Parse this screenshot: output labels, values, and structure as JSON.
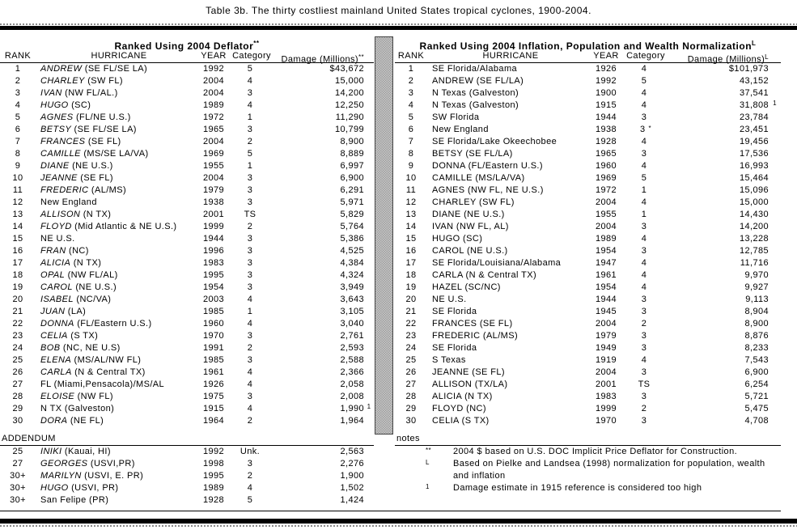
{
  "title": "Table 3b.  The thirty costliest mainland United States tropical cyclones, 1900-2004.",
  "left_table": {
    "section_header": "Ranked Using 2004 Deflator",
    "section_header_sup": "**",
    "columns": {
      "rank": "RANK",
      "hurricane": "HURRICANE",
      "year": "YEAR",
      "category": "Category",
      "damage": "Damage (Millions)",
      "damage_sup": "**"
    },
    "rows": [
      {
        "rank": "1",
        "name": "ANDREW",
        "loc": " (SE FL/SE LA)",
        "year": "1992",
        "cat": "5",
        "dmg": "$43,672",
        "sup": ""
      },
      {
        "rank": "2",
        "name": "CHARLEY",
        "loc": " (SW FL)",
        "year": "2004",
        "cat": "4",
        "dmg": "15,000",
        "sup": ""
      },
      {
        "rank": "3",
        "name": "IVAN",
        "loc": " (NW FL/AL.)",
        "year": "2004",
        "cat": "3",
        "dmg": "14,200",
        "sup": ""
      },
      {
        "rank": "4",
        "name": "HUGO",
        "loc": " (SC)",
        "year": "1989",
        "cat": "4",
        "dmg": "12,250",
        "sup": ""
      },
      {
        "rank": "5",
        "name": "AGNES",
        "loc": " (FL/NE U.S.)",
        "year": "1972",
        "cat": "1",
        "dmg": "11,290",
        "sup": ""
      },
      {
        "rank": "6",
        "name": "BETSY",
        "loc": " (SE FL/SE LA)",
        "year": "1965",
        "cat": "3",
        "dmg": "10,799",
        "sup": ""
      },
      {
        "rank": "7",
        "name": "FRANCES",
        "loc": " (SE FL)",
        "year": "2004",
        "cat": "2",
        "dmg": "8,900",
        "sup": ""
      },
      {
        "rank": "8",
        "name": "CAMILLE",
        "loc": " (MS/SE LA/VA)",
        "year": "1969",
        "cat": "5",
        "dmg": "8,889",
        "sup": ""
      },
      {
        "rank": "9",
        "name": "DIANE",
        "loc": " (NE U.S.)",
        "year": "1955",
        "cat": "1",
        "dmg": "6,997",
        "sup": ""
      },
      {
        "rank": "10",
        "name": "JEANNE",
        "loc": " (SE FL)",
        "year": "2004",
        "cat": "3",
        "dmg": "6,900",
        "sup": ""
      },
      {
        "rank": "11",
        "name": "FREDERIC",
        "loc": " (AL/MS)",
        "year": "1979",
        "cat": "3",
        "dmg": "6,291",
        "sup": ""
      },
      {
        "rank": "12",
        "name": "",
        "loc": "New England",
        "year": "1938",
        "cat": "3",
        "dmg": "5,971",
        "sup": ""
      },
      {
        "rank": "13",
        "name": "ALLISON",
        "loc": " (N TX)",
        "year": "2001",
        "cat": "TS",
        "dmg": "5,829",
        "sup": ""
      },
      {
        "rank": "14",
        "name": "FLOYD",
        "loc": " (Mid Atlantic & NE U.S.)",
        "year": "1999",
        "cat": "2",
        "dmg": "5,764",
        "sup": ""
      },
      {
        "rank": "15",
        "name": "",
        "loc": "NE U.S.",
        "year": "1944",
        "cat": "3",
        "dmg": "5,386",
        "sup": ""
      },
      {
        "rank": "16",
        "name": "FRAN",
        "loc": " (NC)",
        "year": "1996",
        "cat": "3",
        "dmg": "4,525",
        "sup": ""
      },
      {
        "rank": "17",
        "name": "ALICIA",
        "loc": " (N TX)",
        "year": "1983",
        "cat": "3",
        "dmg": "4,384",
        "sup": ""
      },
      {
        "rank": "18",
        "name": "OPAL",
        "loc": " (NW FL/AL)",
        "year": "1995",
        "cat": "3",
        "dmg": "4,324",
        "sup": ""
      },
      {
        "rank": "19",
        "name": "CAROL",
        "loc": " (NE U.S.)",
        "year": "1954",
        "cat": "3",
        "dmg": "3,949",
        "sup": ""
      },
      {
        "rank": "20",
        "name": "ISABEL",
        "loc": " (NC/VA)",
        "year": "2003",
        "cat": "4",
        "dmg": "3,643",
        "sup": ""
      },
      {
        "rank": "21",
        "name": "JUAN",
        "loc": " (LA)",
        "year": "1985",
        "cat": "1",
        "dmg": "3,105",
        "sup": ""
      },
      {
        "rank": "22",
        "name": "DONNA",
        "loc": " (FL/Eastern U.S.)",
        "year": "1960",
        "cat": "4",
        "dmg": "3,040",
        "sup": ""
      },
      {
        "rank": "23",
        "name": "CELIA",
        "loc": " (S TX)",
        "year": "1970",
        "cat": "3",
        "dmg": "2,761",
        "sup": ""
      },
      {
        "rank": "24",
        "name": "BOB",
        "loc": " (NC, NE U.S)",
        "year": "1991",
        "cat": "2",
        "dmg": "2,593",
        "sup": ""
      },
      {
        "rank": "25",
        "name": "ELENA",
        "loc": " (MS/AL/NW FL)",
        "year": "1985",
        "cat": "3",
        "dmg": "2,588",
        "sup": ""
      },
      {
        "rank": "26",
        "name": "CARLA",
        "loc": " (N & Central TX)",
        "year": "1961",
        "cat": "4",
        "dmg": "2,366",
        "sup": ""
      },
      {
        "rank": "27",
        "name": "",
        "loc": "FL (Miami,Pensacola)/MS/AL",
        "year": "1926",
        "cat": "4",
        "dmg": "2,058",
        "sup": ""
      },
      {
        "rank": "28",
        "name": "ELOISE",
        "loc": " (NW FL)",
        "year": "1975",
        "cat": "3",
        "dmg": "2,008",
        "sup": ""
      },
      {
        "rank": "29",
        "name": "",
        "loc": "N TX (Galveston)",
        "year": "1915",
        "cat": "4",
        "dmg": "1,990",
        "sup": "1"
      },
      {
        "rank": "30",
        "name": "DORA",
        "loc": " (NE FL)",
        "year": "1964",
        "cat": "2",
        "dmg": "1,964",
        "sup": ""
      }
    ],
    "addendum_label": "ADDENDUM",
    "addendum_rows": [
      {
        "rank": "25",
        "name": "INIKI",
        "loc": " (Kauai, HI)",
        "year": "1992",
        "cat": "Unk.",
        "dmg": "2,563",
        "sup": ""
      },
      {
        "rank": "27",
        "name": "GEORGES",
        "loc": " (USVI,PR)",
        "year": "1998",
        "cat": "3",
        "dmg": "2,276",
        "sup": ""
      },
      {
        "rank": "30+",
        "name": "MARILYN",
        "loc": " (USVI, E. PR)",
        "year": "1995",
        "cat": "2",
        "dmg": "1,900",
        "sup": ""
      },
      {
        "rank": "30+",
        "name": "HUGO",
        "loc": " (USVI, PR)",
        "year": "1989",
        "cat": "4",
        "dmg": "1,502",
        "sup": ""
      },
      {
        "rank": "30+",
        "name": "",
        "loc": "San Felipe (PR)",
        "year": "1928",
        "cat": "5",
        "dmg": "1,424",
        "sup": ""
      }
    ]
  },
  "right_table": {
    "section_header": "Ranked Using 2004 Inflation, Population and Wealth Normalization",
    "section_header_sup": "L",
    "columns": {
      "rank": "RANK",
      "hurricane": "HURRICANE",
      "year": "YEAR",
      "category": "Category",
      "damage": "Damage (Millions)",
      "damage_sup": "L"
    },
    "rows": [
      {
        "rank": "1",
        "name": "",
        "loc": "SE Florida/Alabama",
        "year": "1926",
        "cat": "4",
        "dmg": "$101,973",
        "sup": ""
      },
      {
        "rank": "2",
        "name": "",
        "loc": "ANDREW (SE FL/LA)",
        "year": "1992",
        "cat": "5",
        "dmg": "43,152",
        "sup": ""
      },
      {
        "rank": "3",
        "name": "",
        "loc": "N Texas (Galveston)",
        "year": "1900",
        "cat": "4",
        "dmg": "37,541",
        "sup": ""
      },
      {
        "rank": "4",
        "name": "",
        "loc": "N Texas (Galveston)",
        "year": "1915",
        "cat": "4",
        "dmg": "31,808",
        "sup": "1"
      },
      {
        "rank": "5",
        "name": "",
        "loc": "SW Florida",
        "year": "1944",
        "cat": "3",
        "dmg": "23,784",
        "sup": ""
      },
      {
        "rank": "6",
        "name": "",
        "loc": "New England",
        "year": "1938",
        "cat": "3",
        "cat_note": "*",
        "dmg": "23,451",
        "sup": ""
      },
      {
        "rank": "7",
        "name": "",
        "loc": "SE Florida/Lake Okeechobee",
        "year": "1928",
        "cat": "4",
        "dmg": "19,456",
        "sup": ""
      },
      {
        "rank": "8",
        "name": "",
        "loc": "BETSY (SE FL/LA)",
        "year": "1965",
        "cat": "3",
        "dmg": "17,536",
        "sup": ""
      },
      {
        "rank": "9",
        "name": "",
        "loc": "DONNA (FL/Eastern U.S.)",
        "year": "1960",
        "cat": "4",
        "dmg": "16,993",
        "sup": ""
      },
      {
        "rank": "10",
        "name": "",
        "loc": "CAMILLE (MS/LA/VA)",
        "year": "1969",
        "cat": "5",
        "dmg": "15,464",
        "sup": ""
      },
      {
        "rank": "11",
        "name": "",
        "loc": "AGNES (NW FL, NE U.S.)",
        "year": "1972",
        "cat": "1",
        "dmg": "15,096",
        "sup": ""
      },
      {
        "rank": "12",
        "name": "",
        "loc": "CHARLEY (SW FL)",
        "year": "2004",
        "cat": "4",
        "dmg": "15,000",
        "sup": ""
      },
      {
        "rank": "13",
        "name": "",
        "loc": "DIANE (NE U.S.)",
        "year": "1955",
        "cat": "1",
        "dmg": "14,430",
        "sup": ""
      },
      {
        "rank": "14",
        "name": "",
        "loc": "IVAN (NW FL, AL)",
        "year": "2004",
        "cat": "3",
        "dmg": "14,200",
        "sup": ""
      },
      {
        "rank": "15",
        "name": "",
        "loc": "HUGO (SC)",
        "year": "1989",
        "cat": "4",
        "dmg": "13,228",
        "sup": ""
      },
      {
        "rank": "16",
        "name": "",
        "loc": "CAROL (NE U.S.)",
        "year": "1954",
        "cat": "3",
        "dmg": "12,785",
        "sup": ""
      },
      {
        "rank": "17",
        "name": "",
        "loc": "SE Florida/Louisiana/Alabama",
        "year": "1947",
        "cat": "4",
        "dmg": "11,716",
        "sup": ""
      },
      {
        "rank": "18",
        "name": "",
        "loc": "CARLA (N & Central TX)",
        "year": "1961",
        "cat": "4",
        "dmg": "9,970",
        "sup": ""
      },
      {
        "rank": "19",
        "name": "",
        "loc": "HAZEL (SC/NC)",
        "year": "1954",
        "cat": "4",
        "dmg": "9,927",
        "sup": ""
      },
      {
        "rank": "20",
        "name": "",
        "loc": "NE U.S.",
        "year": "1944",
        "cat": "3",
        "dmg": "9,113",
        "sup": ""
      },
      {
        "rank": "21",
        "name": "",
        "loc": "SE Florida",
        "year": "1945",
        "cat": "3",
        "dmg": "8,904",
        "sup": ""
      },
      {
        "rank": "22",
        "name": "",
        "loc": "FRANCES (SE FL)",
        "year": "2004",
        "cat": "2",
        "dmg": "8,900",
        "sup": ""
      },
      {
        "rank": "23",
        "name": "",
        "loc": "FREDERIC (AL/MS)",
        "year": "1979",
        "cat": "3",
        "dmg": "8,876",
        "sup": ""
      },
      {
        "rank": "24",
        "name": "",
        "loc": "SE Florida",
        "year": "1949",
        "cat": "3",
        "dmg": "8,233",
        "sup": ""
      },
      {
        "rank": "25",
        "name": "",
        "loc": "S Texas",
        "year": "1919",
        "cat": "4",
        "dmg": "7,543",
        "sup": ""
      },
      {
        "rank": "26",
        "name": "",
        "loc": "JEANNE (SE FL)",
        "year": "2004",
        "cat": "3",
        "dmg": "6,900",
        "sup": ""
      },
      {
        "rank": "27",
        "name": "",
        "loc": "ALLISON (TX/LA)",
        "year": "2001",
        "cat": "TS",
        "dmg": "6,254",
        "sup": ""
      },
      {
        "rank": "28",
        "name": "",
        "loc": "ALICIA (N TX)",
        "year": "1983",
        "cat": "3",
        "dmg": "5,721",
        "sup": ""
      },
      {
        "rank": "29",
        "name": "",
        "loc": "FLOYD (NC)",
        "year": "1999",
        "cat": "2",
        "dmg": "5,475",
        "sup": ""
      },
      {
        "rank": "30",
        "name": "",
        "loc": "CELIA (S TX)",
        "year": "1970",
        "cat": "3",
        "dmg": "4,708",
        "sup": ""
      }
    ],
    "notes_label": "notes",
    "notes": [
      {
        "marker": "**",
        "text": "2004 $ based on U.S. DOC Implicit Price Deflator for Construction."
      },
      {
        "marker": "L",
        "text": "Based on Pielke and Landsea (1998) normalization for population, wealth and inflation"
      },
      {
        "marker": "1",
        "text": "Damage estimate in 1915 reference is considered too high"
      }
    ]
  }
}
